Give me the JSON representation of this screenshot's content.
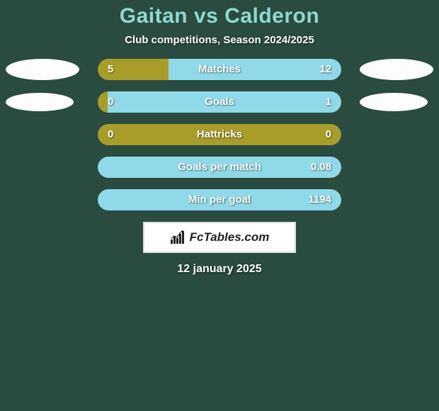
{
  "background_color": "#2a4b3f",
  "title": {
    "text": "Gaitan vs Calderon",
    "color": "#90d8d0",
    "fontsize": 30
  },
  "subtitle": {
    "text": "Club competitions, Season 2024/2025",
    "fontsize": 15
  },
  "avatars": {
    "left": {
      "color": "#fdfdfd"
    },
    "right": {
      "color": "#fdfdfd"
    }
  },
  "colors": {
    "left_fill": "#a89d29",
    "right_fill": "#8fd9e9"
  },
  "rows": [
    {
      "label": "Matches",
      "left_val": "5",
      "right_val": "12",
      "left_pct": 29,
      "right_pct": 71
    },
    {
      "label": "Goals",
      "left_val": "0",
      "right_val": "1",
      "left_pct": 4,
      "right_pct": 96
    },
    {
      "label": "Hattricks",
      "left_val": "0",
      "right_val": "0",
      "left_pct": 100,
      "right_pct": 0
    },
    {
      "label": "Goals per match",
      "left_val": "",
      "right_val": "0.08",
      "left_pct": 0,
      "right_pct": 100
    },
    {
      "label": "Min per goal",
      "left_val": "",
      "right_val": "1194",
      "left_pct": 0,
      "right_pct": 100
    }
  ],
  "branding": {
    "text": "FcTables.com",
    "icon": "bar-chart-icon"
  },
  "date": "12 january 2025"
}
